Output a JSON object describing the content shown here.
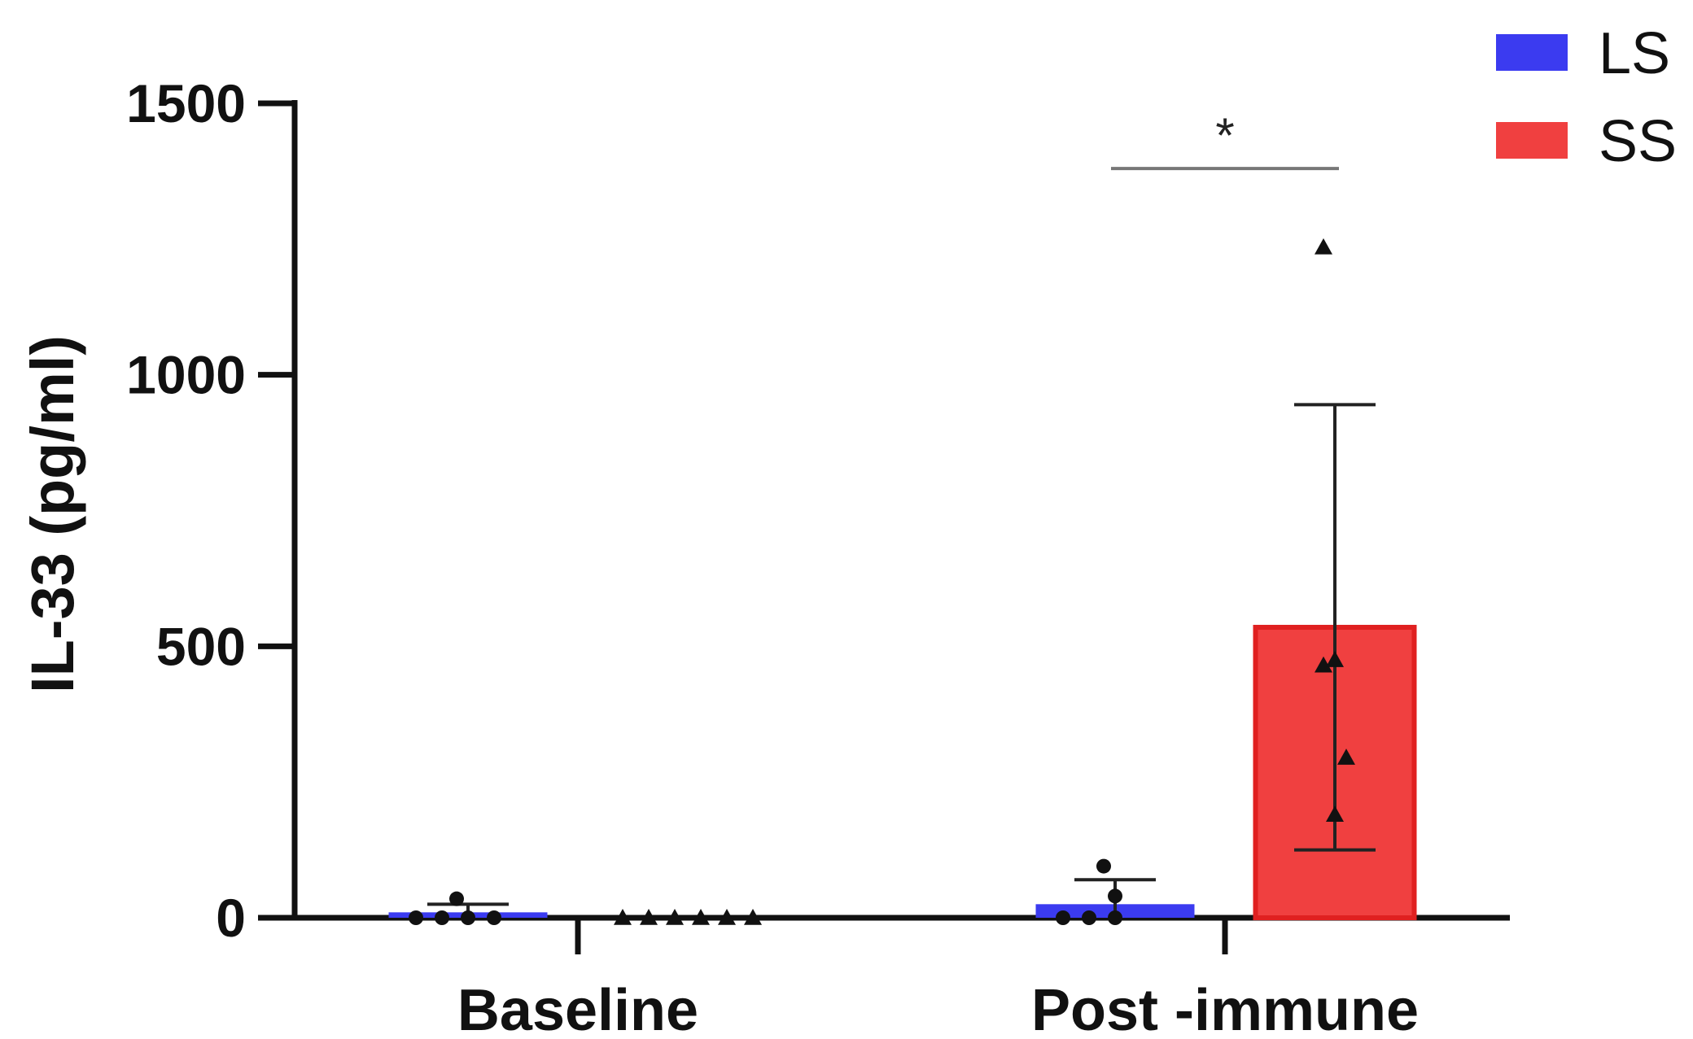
{
  "chart_data": {
    "type": "bar",
    "ylabel": "IL-33 (pg/ml)",
    "ylim": [
      0,
      1500
    ],
    "yticks": [
      0,
      500,
      1000,
      1500
    ],
    "categories": [
      "Baseline",
      "Post -immune"
    ],
    "legend_position": "top-right",
    "series": [
      {
        "name": "LS",
        "color": "#3b3bf0",
        "marker": "circle",
        "values": [
          10,
          25
        ],
        "error": [
          15,
          45
        ],
        "points": [
          [
            0,
            0,
            0,
            0,
            35
          ],
          [
            0,
            0,
            0,
            40,
            95
          ]
        ]
      },
      {
        "name": "SS",
        "color": "#f04040",
        "marker": "triangle",
        "values": [
          0,
          535
        ],
        "error": [
          0,
          410
        ],
        "points": [
          [
            0,
            0,
            0,
            0,
            0,
            0
          ],
          [
            190,
            295,
            465,
            475,
            1235
          ]
        ]
      }
    ],
    "significance": [
      {
        "category": "Post -immune",
        "label": "*",
        "y": 1380
      }
    ]
  }
}
